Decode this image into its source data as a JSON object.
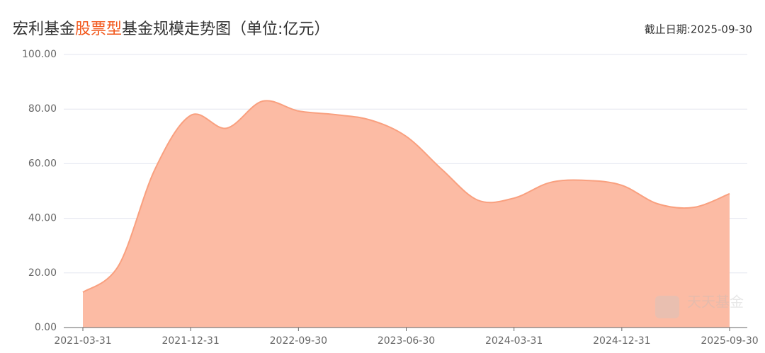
{
  "chart_data": {
    "type": "area",
    "title_parts": [
      "宏利基金",
      "股票型",
      "基金规模走势图（单位:亿元）"
    ],
    "title_colors": [
      "#333333",
      "#f2571b",
      "#333333"
    ],
    "date_note": "截止日期:2025-09-30",
    "watermark": "天天基金",
    "categories": [
      "2021-03-31",
      null,
      null,
      "2021-12-31",
      null,
      null,
      "2022-09-30",
      null,
      null,
      "2023-06-30",
      null,
      null,
      "2024-03-31",
      null,
      null,
      "2024-12-31",
      null,
      null,
      "2025-09-30"
    ],
    "values": [
      12.9,
      22.8,
      57.8,
      77.7,
      73.0,
      82.9,
      79.3,
      78.0,
      76.0,
      70.0,
      57.8,
      46.6,
      47.4,
      53.1,
      53.9,
      52.1,
      45.3,
      44.0,
      49.0
    ],
    "color": "#f9a07f",
    "fill": "#fcbba4",
    "ylim": [
      0,
      100
    ],
    "yticks": [
      {
        "value": 0,
        "label": "0.00"
      },
      {
        "value": 20,
        "label": "20.00"
      },
      {
        "value": 40,
        "label": "40.00"
      },
      {
        "value": 60,
        "label": "60.00"
      },
      {
        "value": 80,
        "label": "80.00"
      },
      {
        "value": 100,
        "label": "100.00"
      }
    ],
    "grid": true
  }
}
